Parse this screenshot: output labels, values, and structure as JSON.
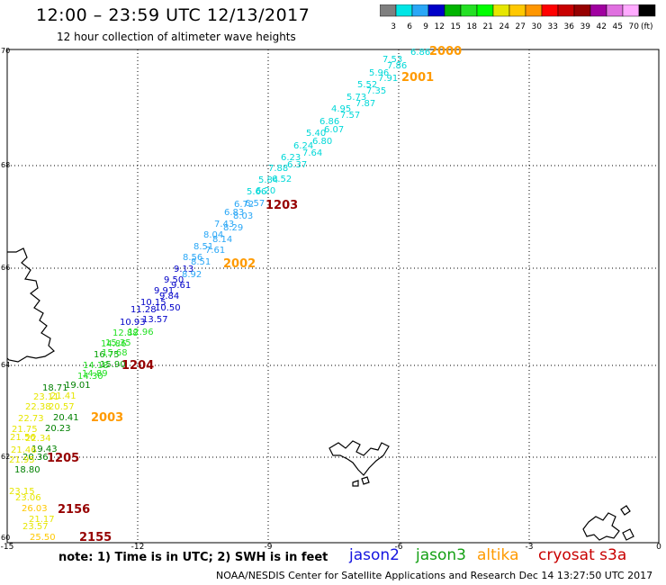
{
  "title": "12:00 – 23:59 UTC 12/13/2017",
  "subtitle": "12 hour collection of altimeter wave heights",
  "colorbar": {
    "labels": [
      "3",
      "6",
      "9",
      "12",
      "15",
      "18",
      "21",
      "24",
      "27",
      "30",
      "33",
      "36",
      "39",
      "42",
      "45",
      "70",
      "(ft)"
    ],
    "colors": [
      "#7f7f7f",
      "#00e5e5",
      "#2aa7f6",
      "#0000c8",
      "#00b400",
      "#24e024",
      "#00ff00",
      "#e6e600",
      "#ffc800",
      "#ff9600",
      "#ff0000",
      "#c80000",
      "#960000",
      "#a000a0",
      "#e070e0",
      "#ffaaff",
      "#000000"
    ]
  },
  "axes": {
    "lat_labels": [
      "70",
      "68",
      "66",
      "64",
      "62",
      "60"
    ],
    "lon_labels": [
      "-15",
      "-12",
      "-9",
      "-6",
      "-3",
      "0"
    ]
  },
  "note": "note: 1) Time is in UTC; 2) SWH is in feet",
  "legend": [
    {
      "name": "jason2",
      "color": "#1414e0"
    },
    {
      "name": "jason3",
      "color": "#14a014"
    },
    {
      "name": "altika",
      "color": "#ff9a00"
    },
    {
      "name": "cryosat s3a",
      "color": "#c80000"
    }
  ],
  "footer": "NOAA/NESDIS Center for Satellite Applications and Research    Dec 14 13:27:50 UTC 2017",
  "time_labels": [
    {
      "text": "2000",
      "color": "#ff9a00"
    },
    {
      "text": "2001",
      "color": "#ff9a00"
    },
    {
      "text": "1203",
      "color": "#960000"
    },
    {
      "text": "2002",
      "color": "#ff9a00"
    },
    {
      "text": "1204",
      "color": "#960000"
    },
    {
      "text": "2003",
      "color": "#ff9a00"
    },
    {
      "text": "1205",
      "color": "#960000"
    },
    {
      "text": "2156",
      "color": "#960000"
    },
    {
      "text": "2155",
      "color": "#960000"
    }
  ],
  "wave_heights": [
    {
      "v": "6.86",
      "c": "#00d8d8"
    },
    {
      "v": "7.53",
      "c": "#00d8d8"
    },
    {
      "v": "7.86",
      "c": "#00d8d8"
    },
    {
      "v": "5.96",
      "c": "#00d8d8"
    },
    {
      "v": "7.91",
      "c": "#00d8d8"
    },
    {
      "v": "5.52",
      "c": "#00d8d8"
    },
    {
      "v": "7.35",
      "c": "#00d8d8"
    },
    {
      "v": "5.73",
      "c": "#00d8d8"
    },
    {
      "v": "7.87",
      "c": "#00d8d8"
    },
    {
      "v": "4.95",
      "c": "#00d8d8"
    },
    {
      "v": "7.57",
      "c": "#00d8d8"
    },
    {
      "v": "6.86",
      "c": "#00d8d8"
    },
    {
      "v": "6.07",
      "c": "#00d8d8"
    },
    {
      "v": "5.40",
      "c": "#00d8d8"
    },
    {
      "v": "6.80",
      "c": "#00d8d8"
    },
    {
      "v": "6.24",
      "c": "#00d8d8"
    },
    {
      "v": "7.64",
      "c": "#00d8d8"
    },
    {
      "v": "6.23",
      "c": "#00d8d8"
    },
    {
      "v": "6.37",
      "c": "#00d8d8"
    },
    {
      "v": "7.88",
      "c": "#00d8d8"
    },
    {
      "v": "6.52",
      "c": "#00d8d8"
    },
    {
      "v": "5.84",
      "c": "#00d8d8"
    },
    {
      "v": "5.66",
      "c": "#00d8d8"
    },
    {
      "v": "6.20",
      "c": "#00d8d8"
    },
    {
      "v": "6.72",
      "c": "#2aa7f6"
    },
    {
      "v": "6.57",
      "c": "#2aa7f6"
    },
    {
      "v": "6.83",
      "c": "#2aa7f6"
    },
    {
      "v": "8.03",
      "c": "#2aa7f6"
    },
    {
      "v": "7.43",
      "c": "#2aa7f6"
    },
    {
      "v": "8.29",
      "c": "#2aa7f6"
    },
    {
      "v": "8.04",
      "c": "#2aa7f6"
    },
    {
      "v": "8.14",
      "c": "#2aa7f6"
    },
    {
      "v": "8.51",
      "c": "#2aa7f6"
    },
    {
      "v": "7.61",
      "c": "#2aa7f6"
    },
    {
      "v": "8.56",
      "c": "#2aa7f6"
    },
    {
      "v": "8.51",
      "c": "#2aa7f6"
    },
    {
      "v": "9.13",
      "c": "#0000c8"
    },
    {
      "v": "8.92",
      "c": "#2aa7f6"
    },
    {
      "v": "9.50",
      "c": "#0000c8"
    },
    {
      "v": "9.61",
      "c": "#0000c8"
    },
    {
      "v": "9.91",
      "c": "#0000c8"
    },
    {
      "v": "9.84",
      "c": "#0000c8"
    },
    {
      "v": "10.15",
      "c": "#0000c8"
    },
    {
      "v": "11.28",
      "c": "#0000c8"
    },
    {
      "v": "10.50",
      "c": "#0000c8"
    },
    {
      "v": "10.93",
      "c": "#0000c8"
    },
    {
      "v": "13.57",
      "c": "#0000c8"
    },
    {
      "v": "12.88",
      "c": "#24e024"
    },
    {
      "v": "12.96",
      "c": "#24e024"
    },
    {
      "v": "14.86",
      "c": "#24e024"
    },
    {
      "v": "15.35",
      "c": "#24e024"
    },
    {
      "v": "16.75",
      "c": "#00a000"
    },
    {
      "v": "15.68",
      "c": "#24e024"
    },
    {
      "v": "14.18",
      "c": "#24e024"
    },
    {
      "v": "15.90",
      "c": "#00a000"
    },
    {
      "v": "14.30",
      "c": "#24e024"
    },
    {
      "v": "14.89",
      "c": "#24e024"
    },
    {
      "v": "18.71",
      "c": "#008000"
    },
    {
      "v": "19.01",
      "c": "#008000"
    },
    {
      "v": "23.11",
      "c": "#e6e600"
    },
    {
      "v": "21.41",
      "c": "#e6e600"
    },
    {
      "v": "22.38",
      "c": "#e6e600"
    },
    {
      "v": "20.57",
      "c": "#e6e600"
    },
    {
      "v": "20.41",
      "c": "#008000"
    },
    {
      "v": "22.73",
      "c": "#e6e600"
    },
    {
      "v": "20.23",
      "c": "#008000"
    },
    {
      "v": "21.75",
      "c": "#e6e600"
    },
    {
      "v": "22.34",
      "c": "#e6e600"
    },
    {
      "v": "21.56",
      "c": "#e6e600"
    },
    {
      "v": "19.43",
      "c": "#008000"
    },
    {
      "v": "21.46",
      "c": "#e6e600"
    },
    {
      "v": "20.36",
      "c": "#008000"
    },
    {
      "v": "21.95",
      "c": "#e6e600"
    },
    {
      "v": "18.80",
      "c": "#008000"
    },
    {
      "v": "23.15",
      "c": "#e6e600"
    },
    {
      "v": "23.06",
      "c": "#e6e600"
    },
    {
      "v": "26.03",
      "c": "#ffc800"
    },
    {
      "v": "21.17",
      "c": "#e6e600"
    },
    {
      "v": "23.57",
      "c": "#e6e600"
    },
    {
      "v": "25.50",
      "c": "#ffc800"
    }
  ]
}
